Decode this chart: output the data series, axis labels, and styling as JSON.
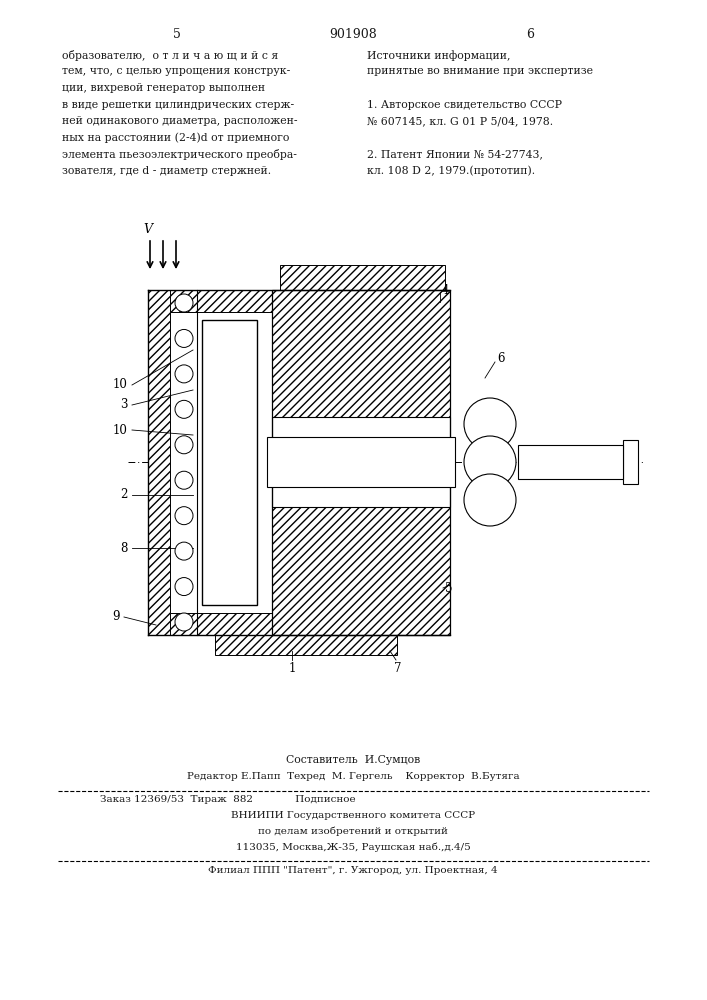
{
  "page_left": "5",
  "page_center": "901908",
  "page_right": "6",
  "col_left": [
    "образователю,  о т л и ч а ю щ и й с я",
    "тем, что, с целью упрощения конструк-",
    "ции, вихревой генератор выполнен",
    "в виде решетки цилиндрических стерж-",
    "ней одинакового диаметра, расположен-",
    "ных на расстоянии (2-4)d от приемного",
    "элемента пьезоэлектрического преобра-",
    "зователя, где d - диаметр стержней."
  ],
  "col_right": [
    "Источники информации,",
    "принятые во внимание при экспертизе",
    "",
    "1. Авторское свидетельство СССР",
    "№ 607145, кл. G 01 P 5/04, 1978.",
    "",
    "2. Патент Японии № 54-27743,",
    "кл. 108 D 2, 1979.(прототип)."
  ],
  "foot1": "Составитель  И.Сумцов",
  "foot2": "Редактор Е.Папп  Техред  М. Гергель    Корректор  В.Бутяга",
  "foot3": "Заказ 12369/53  Тираж  882             Подписное",
  "foot4": "ВНИИПИ Государственного комитета СССР",
  "foot5": "по делам изобретений и открытий",
  "foot6": "113035, Москва,Ж-35, Раушская наб.,д.4/5",
  "foot7": "Филиал ППП \"Патент\", г. Ужгород, ул. Проектная, 4",
  "bg": "#ffffff",
  "fg": "#1a1a1a"
}
